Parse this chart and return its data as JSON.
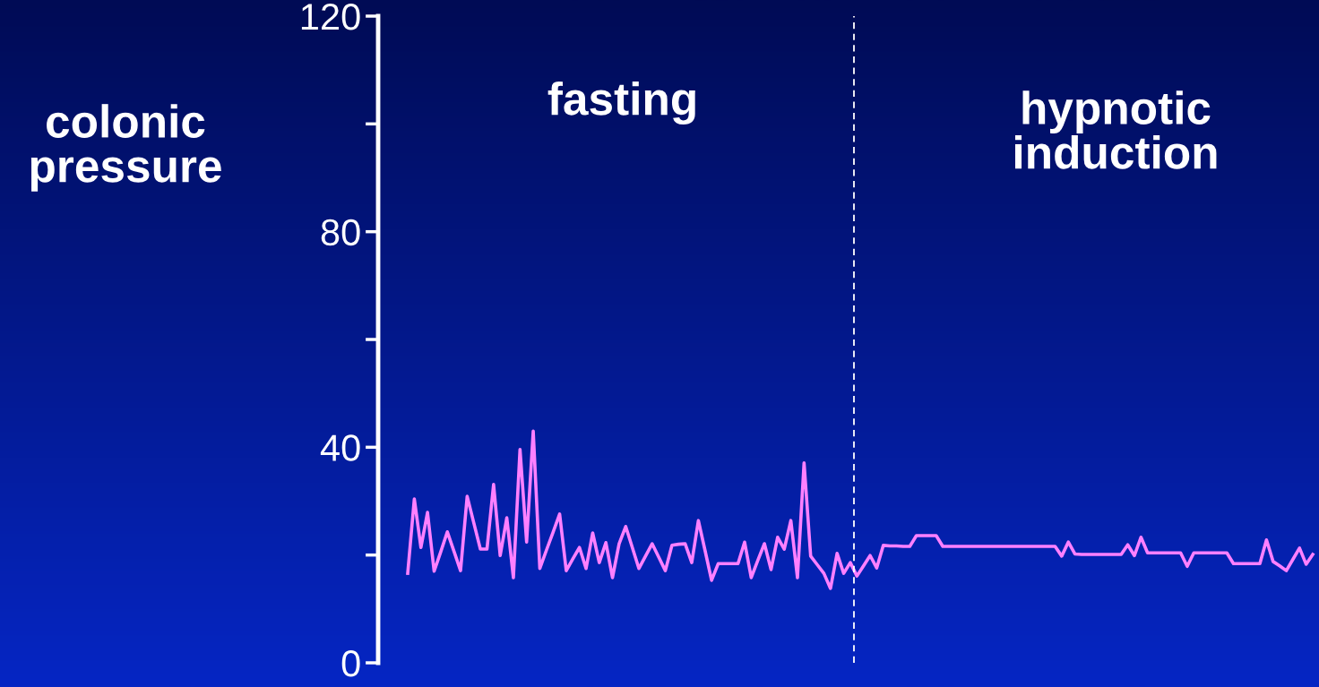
{
  "chart_data": {
    "type": "line",
    "ylabel": "colonic pressure",
    "annotations": [
      "fasting",
      "hypnotic induction"
    ],
    "categories": [
      null,
      null,
      null,
      null,
      null,
      null,
      null,
      null,
      null,
      null,
      null,
      null,
      null,
      null,
      null,
      null,
      null,
      null,
      null,
      null,
      null,
      null,
      null,
      null,
      null,
      null,
      null,
      null,
      null,
      null,
      null,
      null,
      null,
      null,
      null,
      null,
      null,
      null,
      null,
      null,
      null,
      null,
      null,
      null,
      null,
      null,
      null,
      null,
      null,
      null,
      null,
      null,
      null,
      null,
      null,
      null,
      null,
      null,
      null,
      null,
      null,
      null,
      null,
      null,
      null,
      null,
      null,
      null,
      null,
      null,
      null,
      null,
      null,
      null,
      null,
      null,
      null,
      null,
      null,
      null,
      null,
      null,
      null,
      null,
      null,
      null,
      null,
      null,
      null,
      null,
      null,
      null,
      null,
      null,
      null,
      null,
      null,
      null,
      null,
      null,
      null,
      null,
      null,
      null,
      null,
      null,
      null,
      null,
      null,
      null,
      null,
      null,
      null,
      null,
      null,
      null,
      null,
      null,
      null,
      null,
      null,
      null,
      null,
      null,
      null,
      null,
      null,
      null,
      null,
      null,
      null,
      null,
      null,
      null,
      null,
      null,
      null,
      null
    ],
    "series": [
      {
        "color": "#ff80ff",
        "values": [
          16.6,
          30.4,
          21.4,
          27.9,
          17.0,
          20.6,
          24.3,
          20.7,
          17.1,
          30.9,
          26.0,
          21.1,
          21.1,
          33.1,
          19.9,
          26.9,
          15.8,
          39.6,
          22.4,
          43.0,
          17.5,
          20.9,
          24.2,
          27.6,
          17.1,
          19.3,
          21.4,
          17.5,
          24.1,
          18.6,
          22.3,
          15.8,
          22.1,
          25.3,
          21.4,
          17.5,
          19.8,
          22.1,
          19.6,
          17.1,
          21.8,
          22.0,
          22.1,
          18.6,
          26.4,
          20.9,
          15.3,
          18.4,
          18.4,
          18.4,
          18.4,
          22.4,
          15.8,
          19.0,
          22.1,
          17.3,
          23.3,
          21.1,
          26.4,
          15.8,
          37.1,
          19.8,
          18.2,
          16.6,
          13.8,
          20.3,
          16.6,
          18.6,
          16.1,
          18.0,
          19.9,
          17.6,
          21.8,
          21.7,
          21.7,
          21.6,
          21.6,
          23.6,
          23.6,
          23.6,
          23.6,
          21.6,
          21.6,
          21.6,
          21.6,
          21.6,
          21.6,
          21.6,
          21.6,
          21.6,
          21.6,
          21.6,
          21.6,
          21.6,
          21.6,
          21.6,
          21.6,
          21.6,
          21.6,
          19.8,
          22.4,
          20.2,
          20.1,
          20.1,
          20.1,
          20.1,
          20.1,
          20.1,
          20.1,
          21.9,
          19.9,
          23.3,
          20.4,
          20.4,
          20.4,
          20.4,
          20.4,
          20.4,
          17.9,
          20.4,
          20.4,
          20.4,
          20.4,
          20.4,
          20.4,
          18.4,
          18.4,
          18.4,
          18.4,
          18.4,
          22.8,
          18.8,
          18.0,
          17.1,
          19.2,
          21.3,
          18.3,
          20.1
        ]
      }
    ],
    "ylim": [
      0,
      120
    ],
    "yticks": [
      0,
      40,
      80,
      120
    ],
    "tick_labels": "y",
    "marker": "none",
    "line_style": "solid"
  }
}
